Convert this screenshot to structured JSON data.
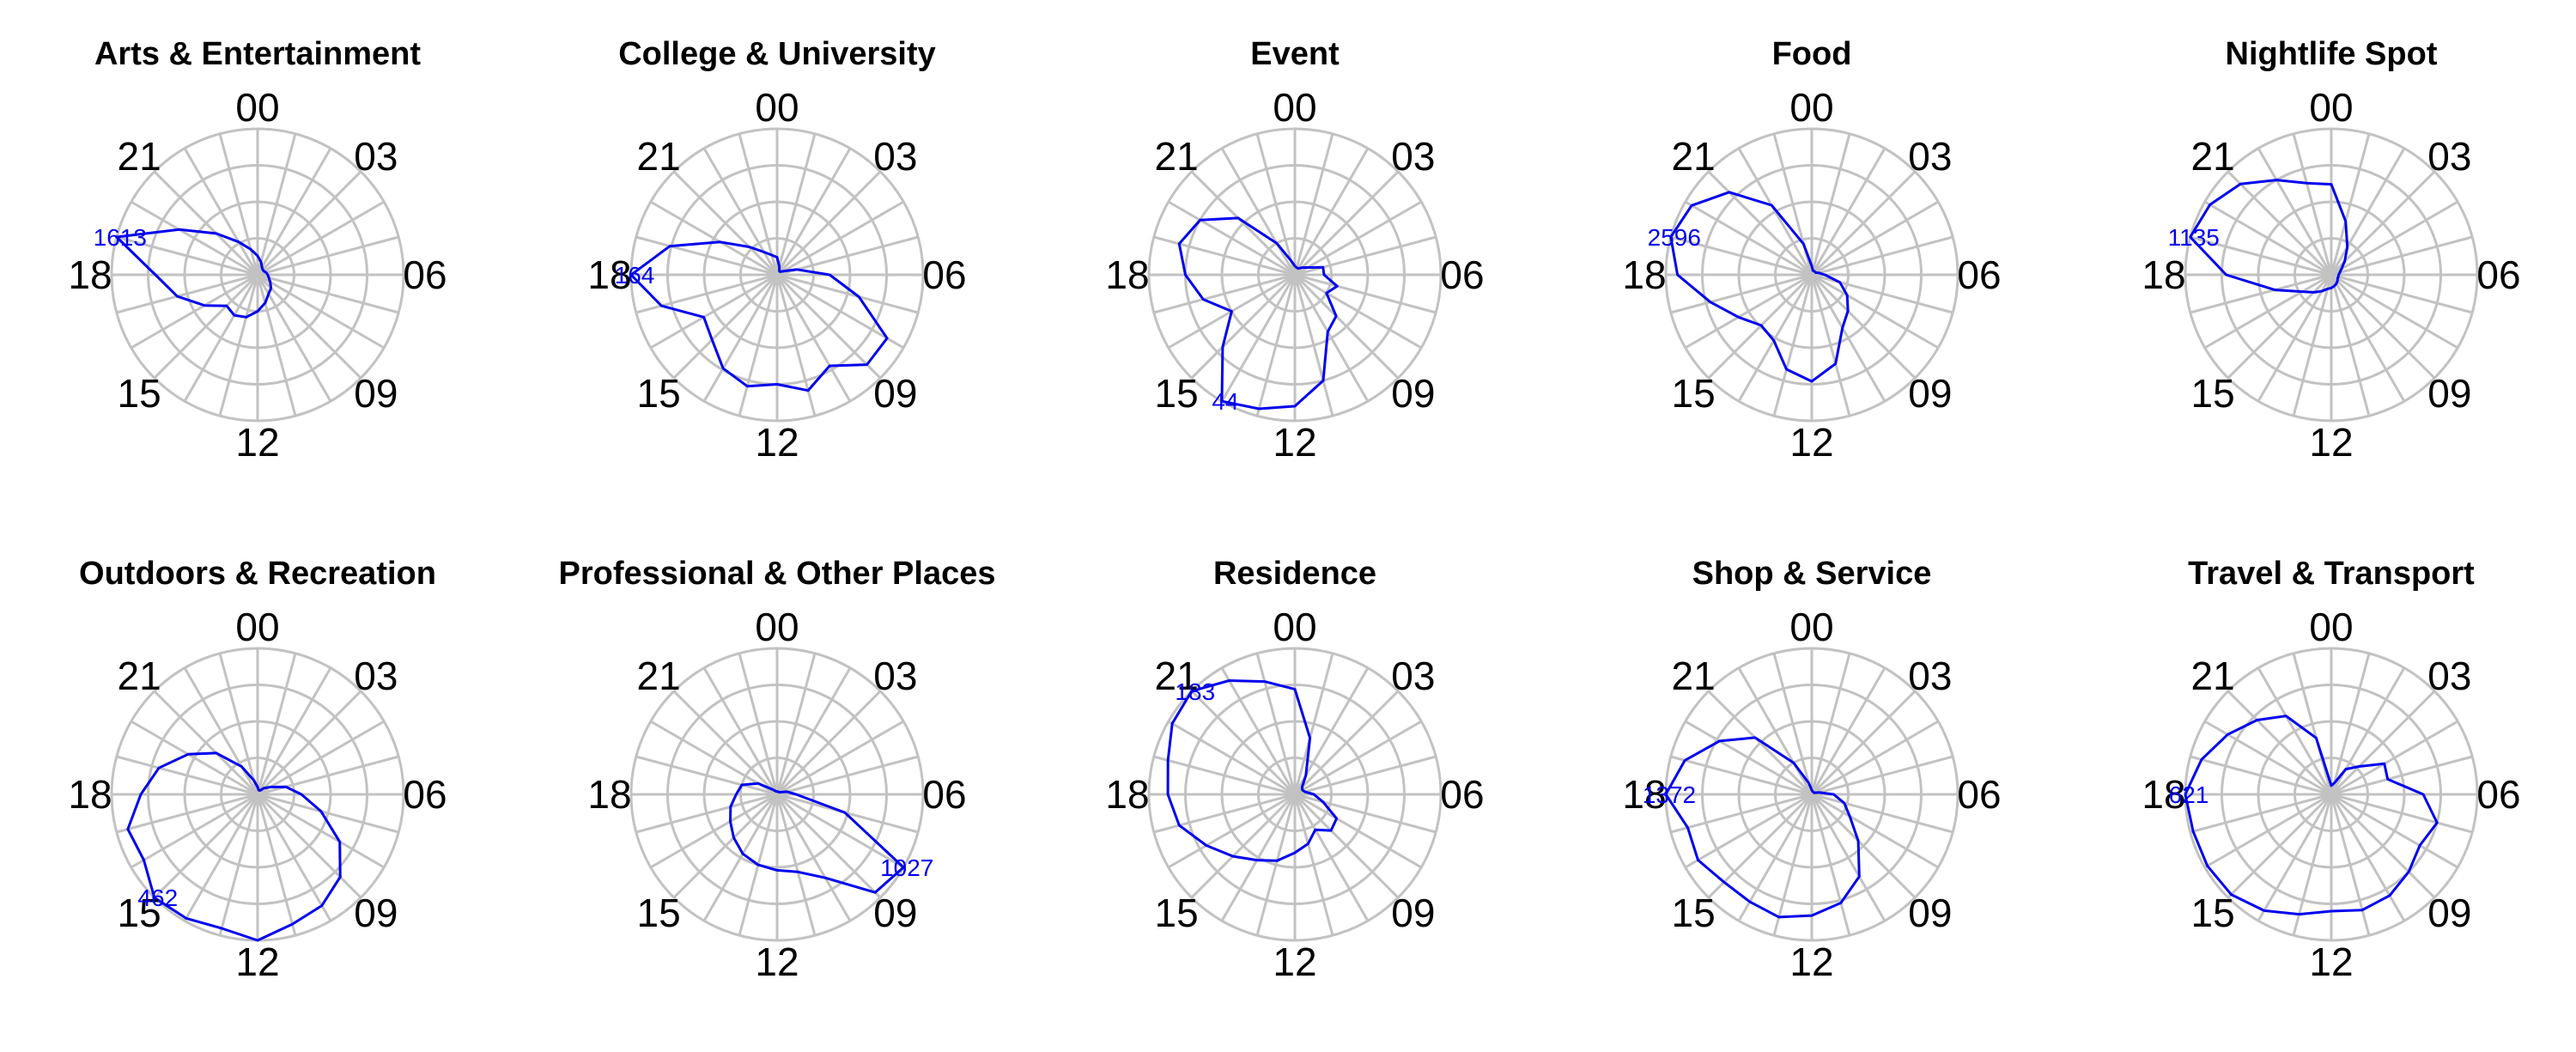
{
  "colors": {
    "line": "#0000ee",
    "grid": "#c2c2c2",
    "text": "#000000"
  },
  "chart_data": {
    "type": "line",
    "layout": "radar-small-multiples",
    "grid": true,
    "hour_labels": [
      "00",
      "03",
      "06",
      "09",
      "12",
      "15",
      "18",
      "21"
    ],
    "panels": [
      {
        "title": "Arts & Entertainment",
        "peak_label": "1613",
        "peak_hour": 19,
        "values": [
          0.13,
          0.09,
          0.06,
          0.05,
          0.05,
          0.06,
          0.07,
          0.08,
          0.1,
          0.13,
          0.15,
          0.2,
          0.25,
          0.3,
          0.32,
          0.3,
          0.42,
          0.57,
          0.7,
          1.0,
          0.62,
          0.4,
          0.26,
          0.18
        ]
      },
      {
        "title": "College & University",
        "peak_label": "164",
        "peak_hour": 18,
        "values": [
          0.12,
          0.06,
          0.03,
          0.03,
          0.05,
          0.14,
          0.36,
          0.58,
          0.87,
          0.87,
          0.72,
          0.82,
          0.75,
          0.79,
          0.74,
          0.63,
          0.58,
          0.82,
          1.0,
          0.76,
          0.45,
          0.27,
          0.18,
          0.14
        ]
      },
      {
        "title": "Event",
        "peak_label": "44",
        "peak_hour": 14,
        "values": [
          0.06,
          0.05,
          0.05,
          0.07,
          0.1,
          0.2,
          0.2,
          0.3,
          0.25,
          0.4,
          0.45,
          0.75,
          0.9,
          0.95,
          1.0,
          0.7,
          0.5,
          0.65,
          0.75,
          0.82,
          0.75,
          0.55,
          0.25,
          0.1
        ]
      },
      {
        "title": "Food",
        "peak_label": "2596",
        "peak_hour": 19,
        "values": [
          0.06,
          0.03,
          0.03,
          0.03,
          0.03,
          0.05,
          0.09,
          0.2,
          0.28,
          0.35,
          0.42,
          0.63,
          0.73,
          0.67,
          0.52,
          0.49,
          0.58,
          0.72,
          0.92,
          1.0,
          0.95,
          0.8,
          0.55,
          0.22
        ]
      },
      {
        "title": "Nightlife Spot",
        "peak_label": "1135",
        "peak_hour": 19,
        "values": [
          0.62,
          0.38,
          0.22,
          0.13,
          0.08,
          0.06,
          0.05,
          0.05,
          0.05,
          0.06,
          0.07,
          0.08,
          0.09,
          0.1,
          0.13,
          0.17,
          0.23,
          0.4,
          0.72,
          1.0,
          0.96,
          0.88,
          0.75,
          0.65
        ]
      },
      {
        "title": "Outdoors & Recreation",
        "peak_label": "462",
        "peak_hour": 15,
        "values": [
          0.05,
          0.03,
          0.03,
          0.06,
          0.1,
          0.2,
          0.3,
          0.45,
          0.65,
          0.8,
          0.88,
          0.92,
          1.0,
          0.95,
          0.98,
          1.0,
          0.9,
          0.92,
          0.8,
          0.7,
          0.55,
          0.4,
          0.22,
          0.1
        ]
      },
      {
        "title": "Professional & Other Places",
        "peak_label": "1027",
        "peak_hour": 8,
        "values": [
          0.02,
          0.02,
          0.02,
          0.02,
          0.03,
          0.07,
          0.13,
          0.48,
          1.0,
          0.95,
          0.66,
          0.55,
          0.52,
          0.5,
          0.47,
          0.42,
          0.37,
          0.33,
          0.28,
          0.25,
          0.15,
          0.05,
          0.03,
          0.02
        ]
      },
      {
        "title": "Residence",
        "peak_label": "183",
        "peak_hour": 21,
        "values": [
          0.72,
          0.4,
          0.15,
          0.07,
          0.06,
          0.07,
          0.13,
          0.2,
          0.33,
          0.35,
          0.28,
          0.35,
          0.4,
          0.47,
          0.52,
          0.6,
          0.7,
          0.82,
          0.87,
          0.9,
          0.97,
          1.0,
          0.9,
          0.8
        ]
      },
      {
        "title": "Shop & Service",
        "peak_label": "1372",
        "peak_hour": 18,
        "values": [
          0.03,
          0.02,
          0.02,
          0.02,
          0.02,
          0.05,
          0.15,
          0.23,
          0.3,
          0.45,
          0.65,
          0.77,
          0.83,
          0.87,
          0.85,
          0.85,
          0.9,
          0.88,
          1.0,
          0.9,
          0.73,
          0.55,
          0.25,
          0.08
        ]
      },
      {
        "title": "Travel & Transport",
        "peak_label": "621",
        "peak_hour": 18,
        "values": [
          0.06,
          0.08,
          0.2,
          0.27,
          0.42,
          0.4,
          0.63,
          0.75,
          0.7,
          0.75,
          0.8,
          0.82,
          0.8,
          0.85,
          0.92,
          0.97,
          0.98,
          0.98,
          1.0,
          0.92,
          0.82,
          0.72,
          0.62,
          0.4
        ]
      }
    ]
  }
}
